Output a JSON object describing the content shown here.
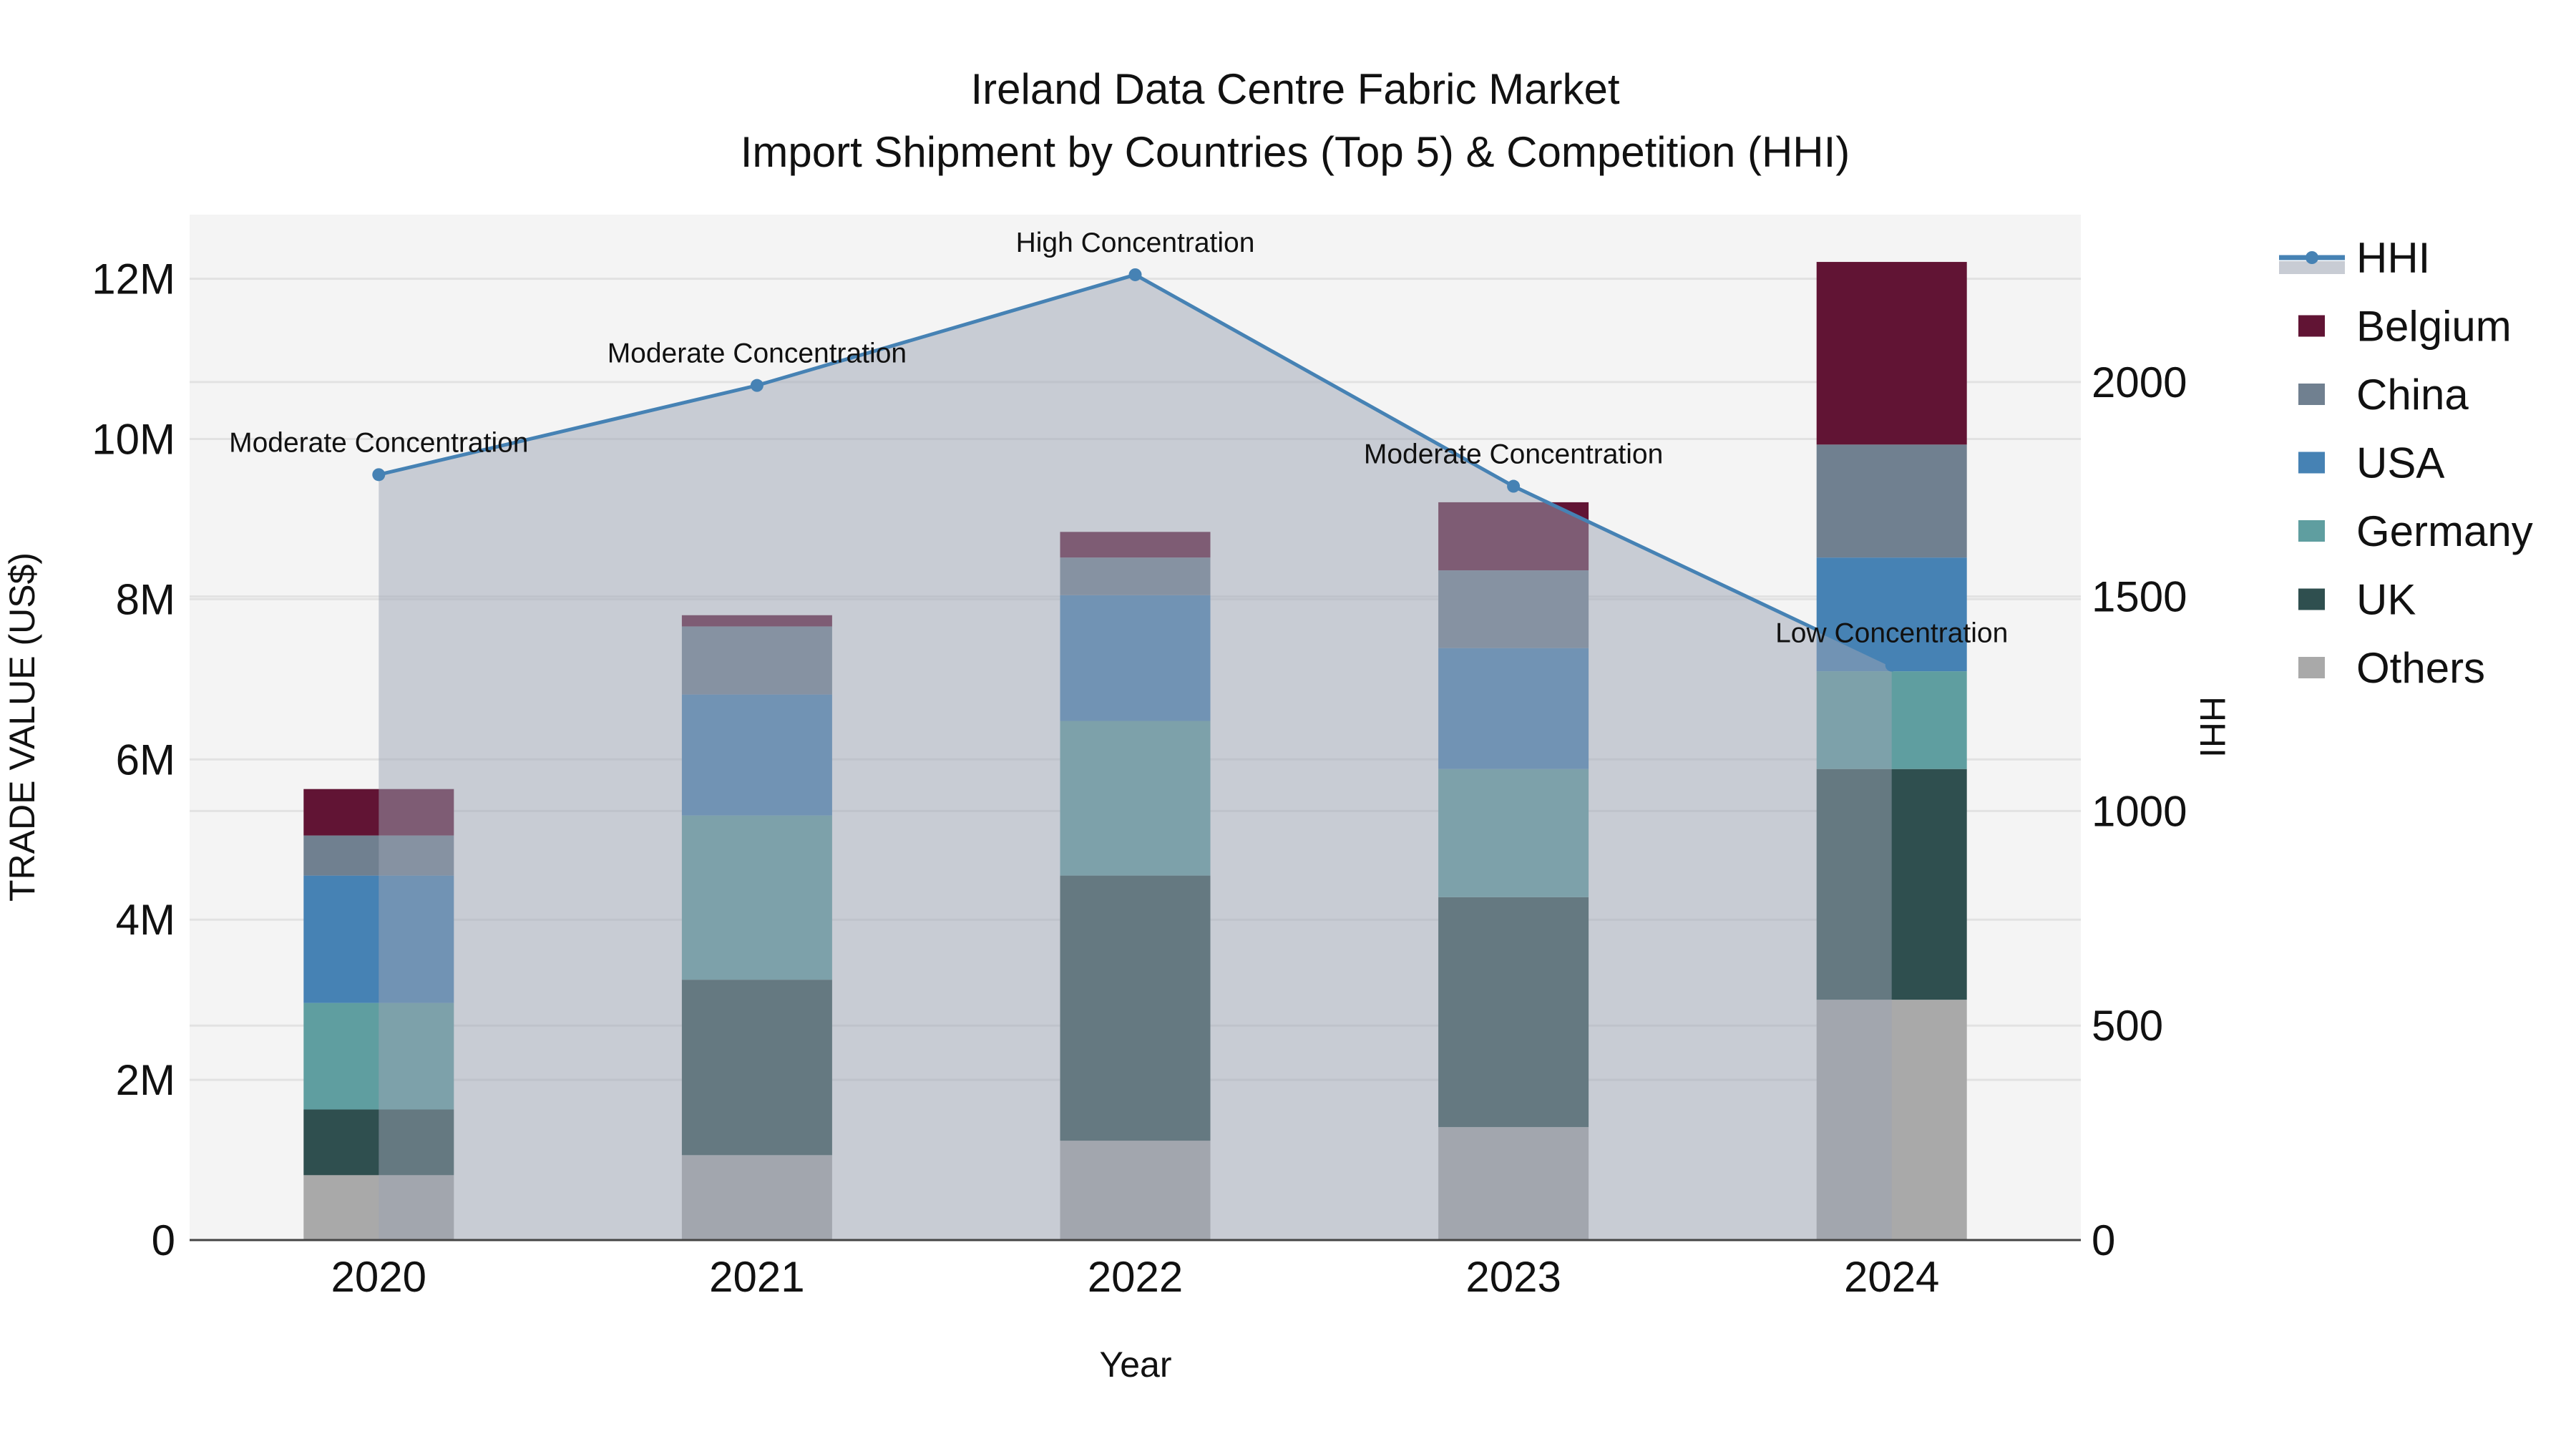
{
  "chart_data": {
    "type": "bar",
    "title_line1": "Ireland Data Centre Fabric Market",
    "title_line2": "Import Shipment by Countries (Top 5) & Competition (HHI)",
    "xlabel": "Year",
    "ylabel": "TRADE VALUE (US$)",
    "y2label": "HHI",
    "categories": [
      "2020",
      "2021",
      "2022",
      "2023",
      "2024"
    ],
    "ylim": [
      0,
      12800000
    ],
    "y2lim": [
      0,
      2390
    ],
    "yticks": [
      0,
      2000000,
      4000000,
      6000000,
      8000000,
      10000000,
      12000000
    ],
    "ytick_labels": [
      "0",
      "2M",
      "4M",
      "6M",
      "8M",
      "10M",
      "12M"
    ],
    "y2ticks": [
      0,
      500,
      1000,
      1500,
      2000
    ],
    "y2tick_labels": [
      "0",
      "500",
      "1000",
      "1500",
      "2000"
    ],
    "stacked": true,
    "series": [
      {
        "name": "Others",
        "color": "#a9a9a9",
        "values": [
          810000,
          1060000,
          1240000,
          1410000,
          3000000
        ]
      },
      {
        "name": "UK",
        "color": "#2f4f4f",
        "values": [
          820000,
          2190000,
          3310000,
          2870000,
          2880000
        ]
      },
      {
        "name": "Germany",
        "color": "#5f9ea0",
        "values": [
          1330000,
          2050000,
          1930000,
          1600000,
          1220000
        ]
      },
      {
        "name": "USA",
        "color": "#4682b4",
        "values": [
          1590000,
          1510000,
          1570000,
          1510000,
          1420000
        ]
      },
      {
        "name": "China",
        "color": "#708090",
        "values": [
          500000,
          850000,
          470000,
          970000,
          1410000
        ]
      },
      {
        "name": "Belgium",
        "color": "#611434",
        "values": [
          580000,
          140000,
          320000,
          850000,
          2280000
        ]
      }
    ],
    "hhi": {
      "name": "HHI",
      "color": "#4682b4",
      "values": [
        1784,
        1992,
        2250,
        1757,
        1340
      ],
      "annotations": [
        "Moderate Concentration",
        "Moderate Concentration",
        "High Concentration",
        "Moderate Concentration",
        "Low Concentration"
      ]
    },
    "legend": [
      "HHI",
      "Belgium",
      "China",
      "USA",
      "Germany",
      "UK",
      "Others"
    ],
    "legend_position": "right",
    "grid": true
  }
}
